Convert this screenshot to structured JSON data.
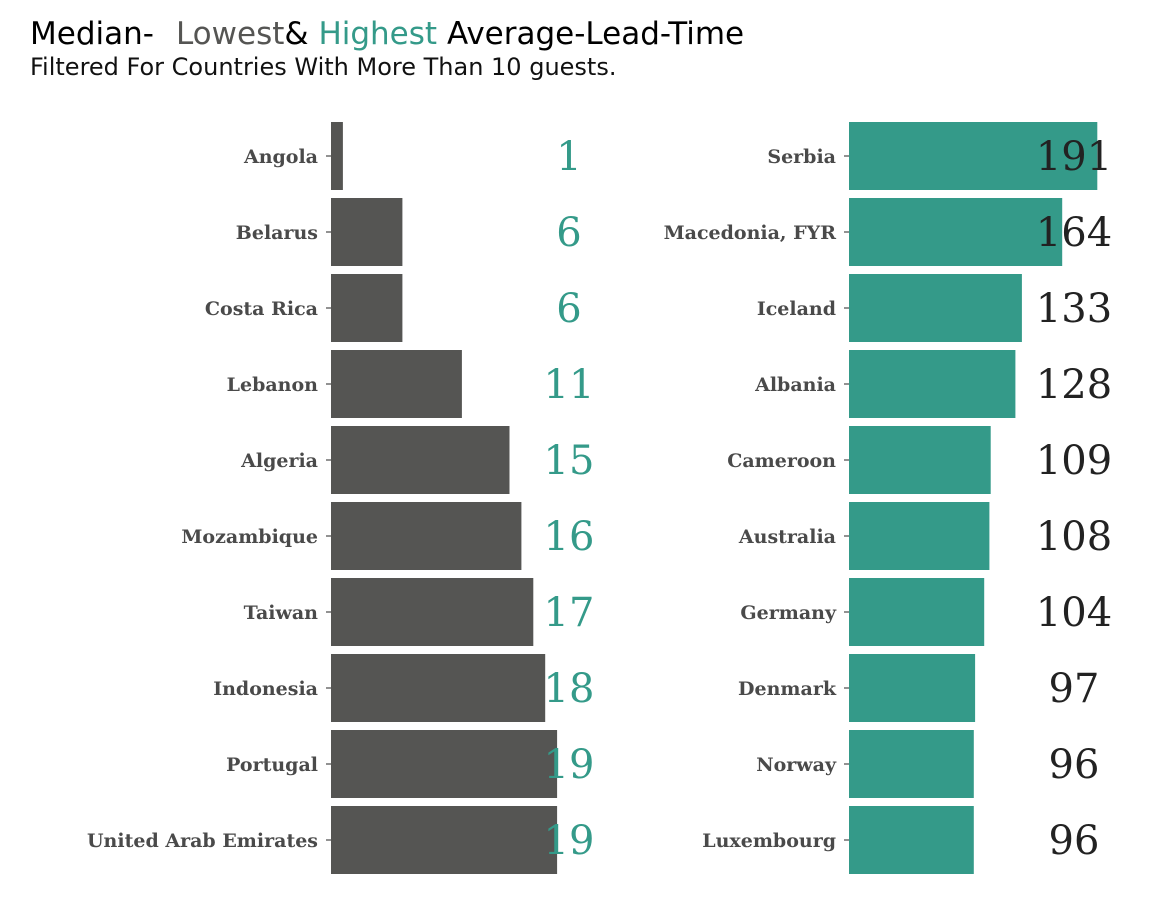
{
  "title": {
    "part1": "Median-",
    "part2": "Lowest",
    "part3": "&",
    "part4": "Highest",
    "part5": "Average-Lead-Time"
  },
  "subtitle": "Filtered For Countries With More Than 10 guests.",
  "colors": {
    "lowest": "#555553",
    "highest": "#349a89",
    "label_lowest": "#349a89",
    "label_highest": "#222222",
    "title_highlight": "#349a89"
  },
  "chart_data": [
    {
      "type": "bar",
      "orientation": "horizontal",
      "panel": "lowest",
      "categories": [
        "Angola",
        "Belarus",
        "Costa Rica",
        "Lebanon",
        "Algeria",
        "Mozambique",
        "Taiwan",
        "Indonesia",
        "Portugal",
        "United Arab Emirates"
      ],
      "values": [
        1,
        6,
        6,
        11,
        15,
        16,
        17,
        18,
        19,
        19
      ],
      "xlim": [
        0,
        20
      ],
      "grid": false
    },
    {
      "type": "bar",
      "orientation": "horizontal",
      "panel": "highest",
      "categories": [
        "Serbia",
        "Macedonia, FYR",
        "Iceland",
        "Albania",
        "Cameroon",
        "Australia",
        "Germany",
        "Denmark",
        "Norway",
        "Luxembourg"
      ],
      "values": [
        191,
        164,
        133,
        128,
        109,
        108,
        104,
        97,
        96,
        96
      ],
      "xlim": [
        0,
        200
      ],
      "grid": false
    }
  ]
}
